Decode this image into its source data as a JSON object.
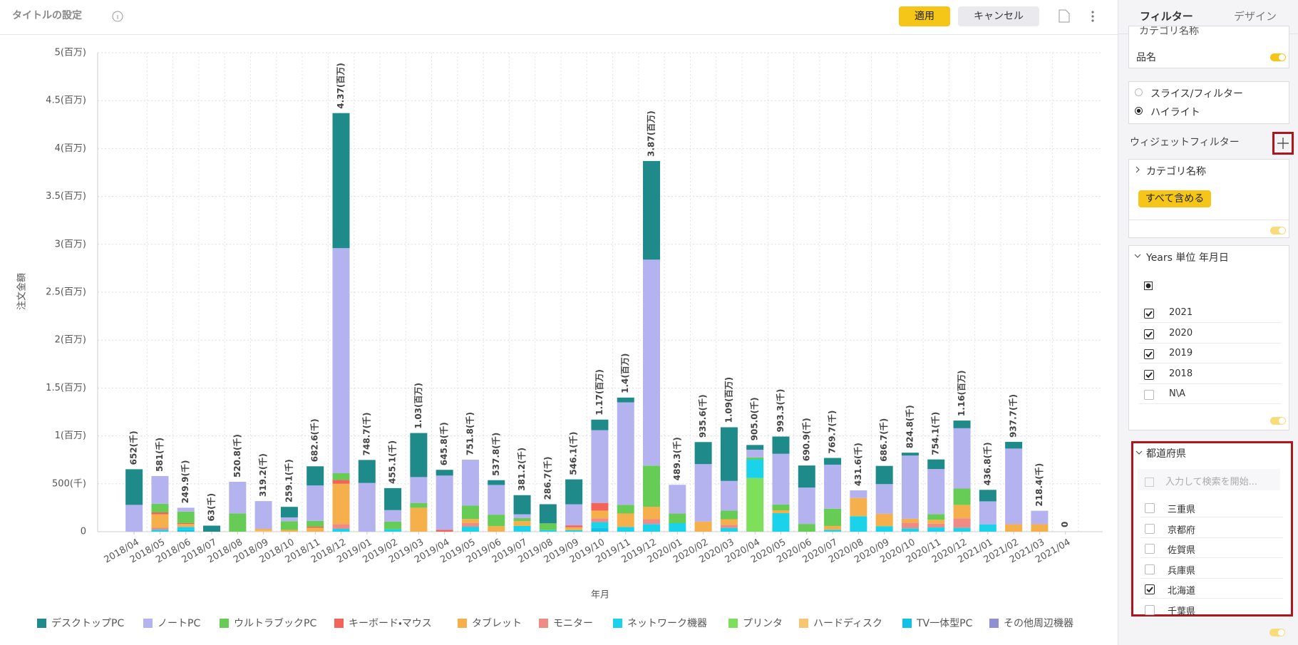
{
  "header": {
    "title": "タイトルの設定",
    "apply": "適用",
    "cancel": "キャンセル"
  },
  "chart_data": {
    "type": "bar",
    "stacked": true,
    "x_label": "年月",
    "y_label": "注文金額",
    "categories": [
      "2018/04",
      "2018/05",
      "2018/06",
      "2018/07",
      "2018/08",
      "2018/09",
      "2018/10",
      "2018/11",
      "2018/12",
      "2019/01",
      "2019/02",
      "2019/03",
      "2019/04",
      "2019/05",
      "2019/06",
      "2019/07",
      "2019/08",
      "2019/09",
      "2019/10",
      "2019/11",
      "2019/12",
      "2020/01",
      "2020/02",
      "2020/03",
      "2020/04",
      "2020/05",
      "2020/06",
      "2020/07",
      "2020/08",
      "2020/09",
      "2020/10",
      "2020/11",
      "2020/12",
      "2021/01",
      "2021/02",
      "2021/03",
      "2021/04"
    ],
    "series": [
      {
        "name": "デスクトップPC",
        "color": "#1f8a8a",
        "values": [
          372000,
          0,
          0,
          63000,
          0,
          0,
          110000,
          200000,
          1410000,
          240000,
          230000,
          460000,
          60000,
          0,
          50000,
          200000,
          200000,
          260000,
          110000,
          50000,
          1030000,
          0,
          230000,
          560000,
          50000,
          180000,
          230000,
          70000,
          0,
          190000,
          30000,
          100000,
          80000,
          120000,
          70000,
          0,
          0
        ]
      },
      {
        "name": "ノートPC",
        "color": "#b4b2ef",
        "values": [
          280000,
          290000,
          40000,
          0,
          330000,
          290000,
          40000,
          370000,
          2350000,
          508700,
          120000,
          270000,
          565800,
          480000,
          310000,
          40000,
          0,
          220000,
          760000,
          1070000,
          2150000,
          300000,
          600000,
          310000,
          80000,
          530000,
          380000,
          460000,
          80000,
          310000,
          660000,
          470000,
          630000,
          240000,
          790000,
          140000,
          0
        ]
      },
      {
        "name": "ウルトラブックPC",
        "color": "#66cc55",
        "values": [
          0,
          90000,
          120000,
          0,
          190800,
          0,
          90000,
          60000,
          70000,
          0,
          80000,
          50000,
          0,
          140000,
          120000,
          31200,
          70000,
          0,
          0,
          90000,
          430000,
          100000,
          0,
          90000,
          20000,
          60000,
          80900,
          180000,
          0,
          0,
          0,
          60000,
          170000,
          0,
          0,
          0,
          0
        ]
      },
      {
        "name": "キーボード・マウス",
        "color": "#f2645a",
        "values": [
          0,
          20000,
          10000,
          0,
          0,
          0,
          0,
          12600,
          40000,
          0,
          0,
          0,
          20000,
          0,
          0,
          0,
          0,
          20000,
          80000,
          0,
          0,
          0,
          0,
          0,
          0,
          0,
          0,
          0,
          0,
          0,
          0,
          0,
          0,
          0,
          0,
          0,
          0
        ]
      },
      {
        "name": "タブレット",
        "color": "#f5b04b",
        "values": [
          0,
          140000,
          30000,
          0,
          0,
          20000,
          19100,
          40000,
          420000,
          0,
          0,
          250000,
          0,
          40000,
          57800,
          50000,
          0,
          30000,
          80000,
          140000,
          130000,
          0,
          105600,
          60000,
          0,
          30000,
          0,
          40000,
          190000,
          130000,
          40000,
          40000,
          140000,
          0,
          77700,
          78400,
          0
        ]
      },
      {
        "name": "モニター",
        "color": "#f08a84",
        "values": [
          0,
          20000,
          0,
          0,
          0,
          0,
          0,
          0,
          50000,
          0,
          0,
          0,
          0,
          40000,
          0,
          0,
          0,
          0,
          40000,
          0,
          50000,
          0,
          0,
          30000,
          0,
          0,
          0,
          0,
          0,
          0,
          60000,
          40000,
          100000,
          0,
          0,
          0,
          0
        ]
      },
      {
        "name": "ネットワーク機器",
        "color": "#1ad3ea",
        "values": [
          0,
          21000,
          30000,
          0,
          0,
          0,
          0,
          0,
          30000,
          0,
          25100,
          0,
          0,
          51800,
          0,
          60000,
          16700,
          16100,
          60000,
          50000,
          80000,
          89300,
          0,
          40000,
          195000,
          193300,
          0,
          19700,
          161600,
          56700,
          34800,
          44100,
          40000,
          76800,
          0,
          0,
          0
        ]
      },
      {
        "name": "プリンタ",
        "color": "#7ee05a",
        "values": [
          0,
          0,
          0,
          0,
          0,
          0,
          0,
          0,
          0,
          0,
          0,
          0,
          0,
          0,
          0,
          0,
          0,
          0,
          0,
          0,
          0,
          0,
          0,
          0,
          560000,
          0,
          0,
          0,
          0,
          0,
          0,
          0,
          0,
          0,
          0,
          0,
          0
        ]
      },
      {
        "name": "ハードディスク",
        "color": "#f7c572",
        "values": [
          0,
          0,
          0,
          0,
          0,
          9200,
          0,
          0,
          0,
          0,
          0,
          0,
          0,
          0,
          0,
          0,
          0,
          0,
          0,
          0,
          0,
          0,
          0,
          0,
          0,
          0,
          0,
          0,
          0,
          0,
          0,
          0,
          0,
          0,
          0,
          0,
          0
        ]
      },
      {
        "name": "TV一体型PC",
        "color": "#12c2e6",
        "values": [
          0,
          0,
          19900,
          0,
          0,
          0,
          0,
          0,
          0,
          0,
          0,
          0,
          0,
          0,
          0,
          0,
          0,
          0,
          40000,
          0,
          0,
          0,
          0,
          0,
          0,
          0,
          0,
          0,
          0,
          0,
          0,
          0,
          0,
          0,
          0,
          0,
          0
        ]
      },
      {
        "name": "その他周辺機器",
        "color": "#8f8fd4",
        "values": [
          0,
          0,
          0,
          0,
          0,
          0,
          0,
          0,
          0,
          0,
          0,
          0,
          0,
          0,
          0,
          0,
          0,
          0,
          0,
          0,
          0,
          0,
          0,
          0,
          0,
          0,
          0,
          0,
          0,
          0,
          0,
          0,
          0,
          0,
          0,
          0,
          0
        ]
      }
    ],
    "totals": [
      652000,
      581000,
      249900,
      63000,
      520800,
      319200,
      259100,
      682600,
      4370000,
      748700,
      455100,
      1030000,
      645800,
      751800,
      537800,
      381200,
      286700,
      546100,
      1170000,
      1400000,
      3870000,
      489300,
      935600,
      1090000,
      905000,
      993300,
      690900,
      769700,
      431600,
      686700,
      824800,
      754100,
      1160000,
      436800,
      937700,
      218400,
      0
    ],
    "value_labels": [
      "652(千)",
      "581(千)",
      "249.9(千)",
      "63(千)",
      "520.8(千)",
      "319.2(千)",
      "259.1(千)",
      "682.6(千)",
      "4.37(百万)",
      "748.7(千)",
      "455.1(千)",
      "1.03(百万)",
      "645.8(千)",
      "751.8(千)",
      "537.8(千)",
      "381.2(千)",
      "286.7(千)",
      "546.1(千)",
      "1.17(百万)",
      "1.4(百万)",
      "3.87(百万)",
      "489.3(千)",
      "935.6(千)",
      "1.09(百万)",
      "905.0(千)",
      "993.3(千)",
      "690.9(千)",
      "769.7(千)",
      "431.6(千)",
      "686.7(千)",
      "824.8(千)",
      "754.1(千)",
      "1.16(百万)",
      "436.8(千)",
      "937.7(千)",
      "218.4(千)",
      "0"
    ],
    "ylim": [
      0,
      5000000
    ],
    "yticks": [
      0,
      {
        "value": 500000,
        "label": "500(千)"
      },
      {
        "value": 1000000,
        "label": "1(百万)"
      },
      {
        "value": 1500000,
        "label": "1.5(百万)"
      },
      {
        "value": 2000000,
        "label": "2(百万)"
      },
      {
        "value": 2500000,
        "label": "2.5(百万)"
      },
      {
        "value": 3000000,
        "label": "3(百万)"
      },
      {
        "value": 3500000,
        "label": "3.5(百万)"
      },
      {
        "value": 4000000,
        "label": "4(百万)"
      },
      {
        "value": 4500000,
        "label": "4.5(百万)"
      },
      {
        "value": 5000000,
        "label": "5(百万)"
      }
    ],
    "grid": true,
    "legend": "bottom"
  },
  "panel": {
    "tabs": [
      "フィルター",
      "デザイン"
    ],
    "cut_card": "カテゴリ名称",
    "field": "品名",
    "modes": [
      {
        "label": "スライス/フィルター",
        "selected": false
      },
      {
        "label": "ハイライト",
        "selected": true
      }
    ],
    "widget_filter": "ウィジェットフィルター",
    "category_card": {
      "title": "カテゴリ名称",
      "button": "すべて含める"
    },
    "years_card": {
      "title": "Years 単位 年月日",
      "items": [
        {
          "label": "2021",
          "checked": true
        },
        {
          "label": "2020",
          "checked": true
        },
        {
          "label": "2019",
          "checked": true
        },
        {
          "label": "2018",
          "checked": true
        },
        {
          "label": "N\\A",
          "checked": false
        }
      ]
    },
    "pref_card": {
      "title": "都道府県",
      "placeholder": "入力して検索を開始...",
      "items": [
        {
          "label": "三重県",
          "checked": false
        },
        {
          "label": "京都府",
          "checked": false
        },
        {
          "label": "佐賀県",
          "checked": false
        },
        {
          "label": "兵庫県",
          "checked": false
        },
        {
          "label": "北海道",
          "checked": true
        },
        {
          "label": "千葉県",
          "checked": false
        }
      ]
    }
  }
}
